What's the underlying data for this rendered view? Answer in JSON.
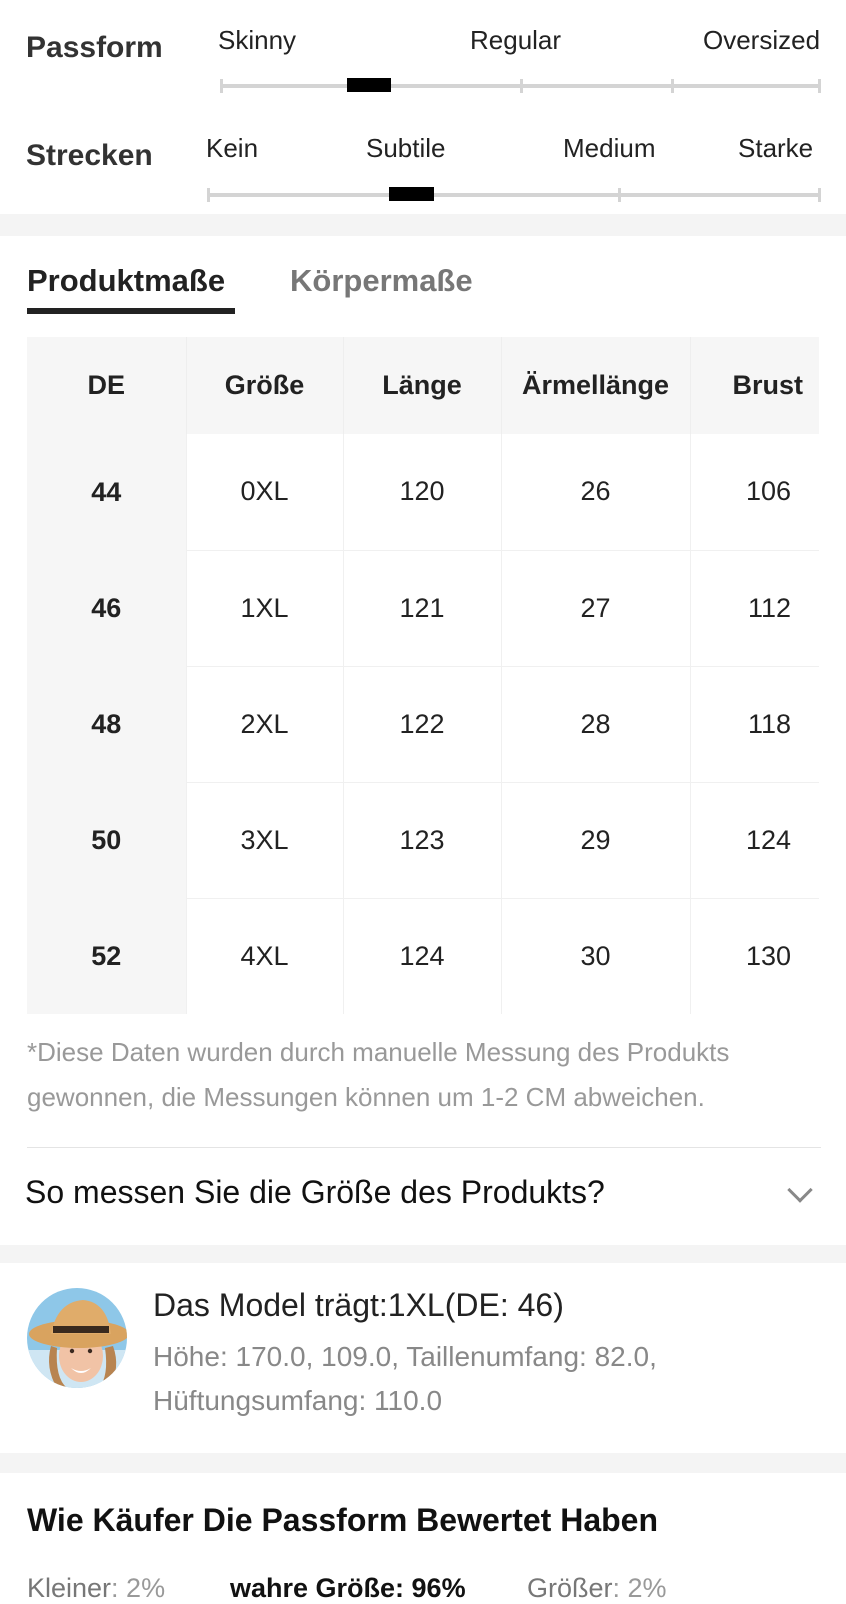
{
  "fit": {
    "label": "Passform",
    "options": [
      "Skinny",
      "Regular",
      "Oversized"
    ],
    "selected_position": 0.25
  },
  "stretch": {
    "label": "Strecken",
    "options": [
      "Kein",
      "Subtile",
      "Medium",
      "Starke"
    ],
    "selected_position": 0.33
  },
  "tabs": [
    {
      "label": "Produktmaße",
      "active": true
    },
    {
      "label": "Körpermaße",
      "active": false
    }
  ],
  "table": {
    "headers": [
      "DE",
      "Größe",
      "Länge",
      "Ärmellänge",
      "Brust"
    ],
    "rows": [
      [
        "44",
        "0XL",
        "120",
        "26",
        "106"
      ],
      [
        "46",
        "1XL",
        "121",
        "27",
        "112"
      ],
      [
        "48",
        "2XL",
        "122",
        "28",
        "118"
      ],
      [
        "50",
        "3XL",
        "123",
        "29",
        "124"
      ],
      [
        "52",
        "4XL",
        "124",
        "30",
        "130"
      ]
    ]
  },
  "disclaimer": "*Diese Daten wurden durch manuelle Messung des Produkts gewonnen, die Messungen können um 1-2 CM abweichen.",
  "how_to_measure": "So messen Sie die Größe des Produkts?",
  "model": {
    "title": "Das Model trägt:1XL(DE: 46)",
    "details": "Höhe: 170.0,   109.0,  Taillenumfang: 82.0, Hüftungsumfang: 110.0"
  },
  "ratings": {
    "title": "Wie Käufer Die Passform Bewertet Haben",
    "smaller": {
      "label": "Kleiner",
      "value": ": 2%"
    },
    "true": {
      "label": "wahre Größe",
      "value": ": 96%"
    },
    "larger": {
      "label": "Größer",
      "value": ": 2%"
    }
  },
  "colors": {
    "background": "#ffffff",
    "section_gap": "#f4f4f4",
    "slider_track": "#d4d4d4",
    "slider_thumb": "#000000",
    "muted_text": "#999999"
  },
  "icons": [
    "chevron-down-icon"
  ]
}
